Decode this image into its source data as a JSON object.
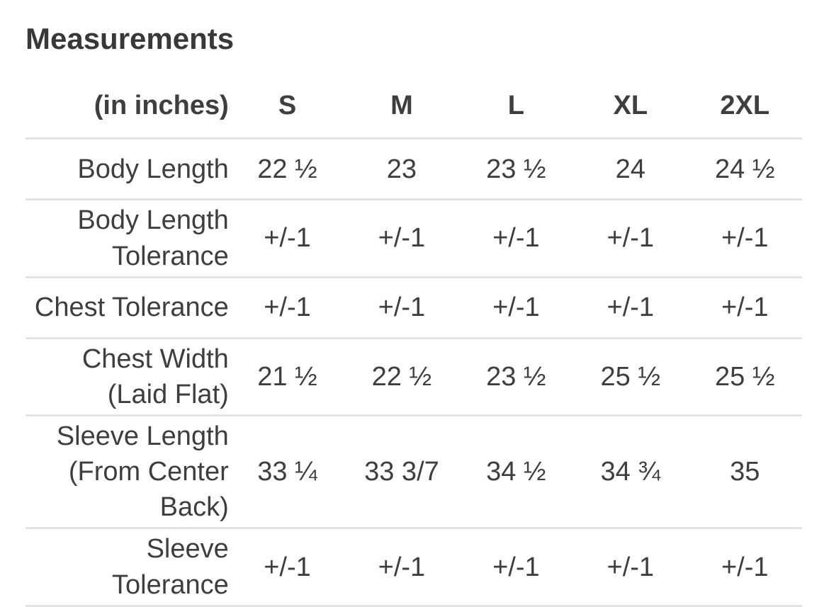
{
  "page": {
    "title": "Measurements"
  },
  "table": {
    "unit_label": "(in inches)",
    "size_headers": [
      "S",
      "M",
      "L",
      "XL",
      "2XL"
    ],
    "rows": [
      {
        "label": "Body Length",
        "values": [
          "22 ½",
          "23",
          "23 ½",
          "24",
          "24 ½"
        ]
      },
      {
        "label": "Body Length Tolerance",
        "values": [
          "+/-1",
          "+/-1",
          "+/-1",
          "+/-1",
          "+/-1"
        ]
      },
      {
        "label": "Chest Tolerance",
        "values": [
          "+/-1",
          "+/-1",
          "+/-1",
          "+/-1",
          "+/-1"
        ]
      },
      {
        "label": "Chest Width (Laid Flat)",
        "values": [
          "21 ½",
          "22 ½",
          "23 ½",
          "25 ½",
          "25 ½"
        ]
      },
      {
        "label": "Sleeve Length (From Center Back)",
        "values": [
          "33 ¼",
          "33 3/7",
          "34 ½",
          "34 ¾",
          "35"
        ]
      },
      {
        "label": "Sleeve Tolerance",
        "values": [
          "+/-1",
          "+/-1",
          "+/-1",
          "+/-1",
          "+/-1"
        ]
      }
    ]
  },
  "colors": {
    "background": "#ffffff",
    "title_text": "#383838",
    "body_text": "#3e3e3e",
    "row_border": "#e3e3e3"
  }
}
